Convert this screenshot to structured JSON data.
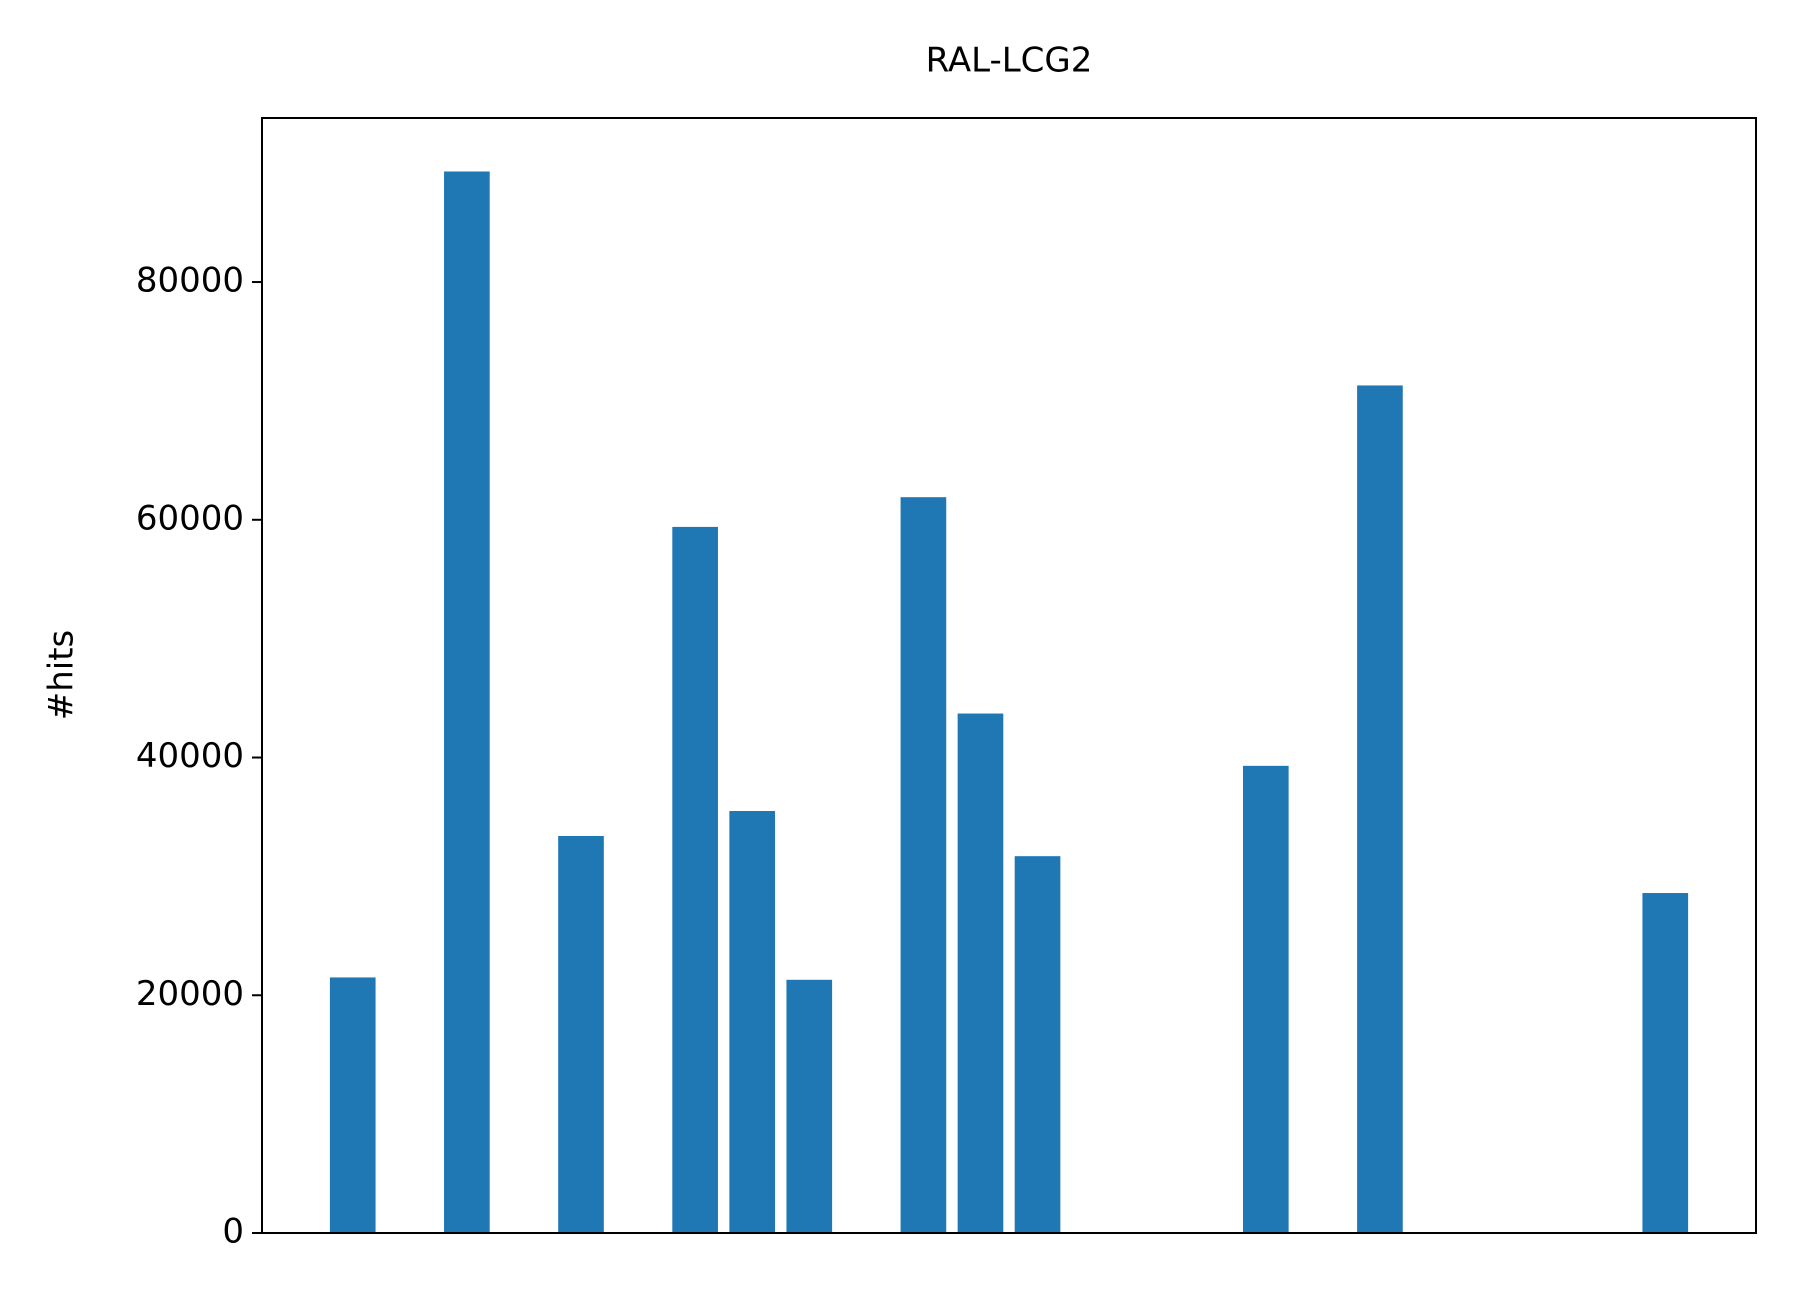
{
  "chart_data": {
    "type": "bar",
    "title": "RAL-LCG2",
    "y_label": "#hits",
    "x": [
      0,
      2,
      4,
      6,
      7,
      8,
      10,
      11,
      12,
      16,
      18,
      23
    ],
    "values": [
      21500,
      89300,
      33400,
      59400,
      35500,
      21300,
      61900,
      43700,
      31700,
      39300,
      71300,
      28600
    ],
    "color": "#1f77b4",
    "xlim": [
      -1.59,
      24.59
    ],
    "ylim": [
      0,
      93800
    ],
    "yticks": [
      0,
      20000,
      40000,
      60000,
      80000
    ],
    "grid": false
  }
}
